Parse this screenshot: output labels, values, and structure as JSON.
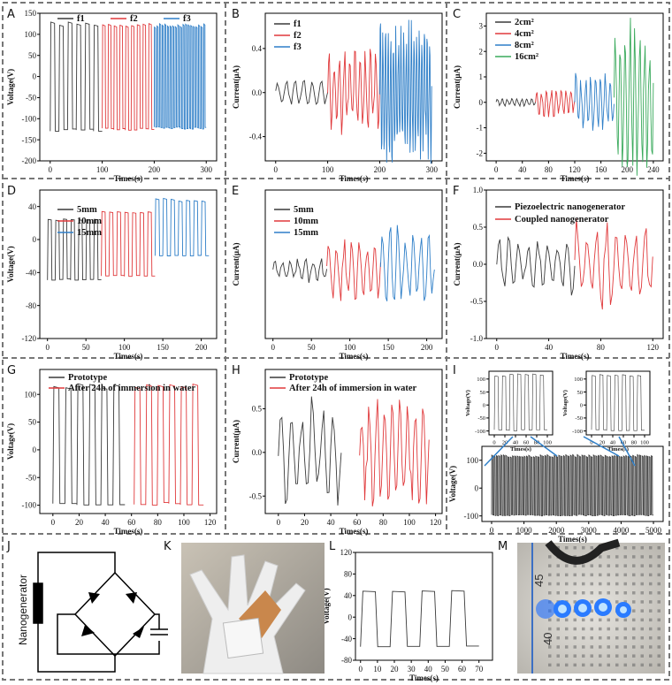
{
  "panels": {
    "A": {
      "label": "A"
    },
    "B": {
      "label": "B"
    },
    "C": {
      "label": "C"
    },
    "D": {
      "label": "D"
    },
    "E": {
      "label": "E"
    },
    "F": {
      "label": "F"
    },
    "G": {
      "label": "G"
    },
    "H": {
      "label": "H"
    },
    "I": {
      "label": "I"
    },
    "J": {
      "label": "J"
    },
    "K": {
      "label": "K"
    },
    "L": {
      "label": "L"
    },
    "M": {
      "label": "M"
    }
  },
  "circuit": {
    "source_label": "Nanogenerator"
  },
  "photo_m": {
    "ruler_labels": [
      "45",
      "40"
    ]
  },
  "colors": {
    "black": "#3a3a3a",
    "red": "#e0393b",
    "blue": "#2f7fc8",
    "green": "#3aaa5c"
  },
  "chart_data": [
    {
      "id": "A",
      "type": "line",
      "ylabel": "Voltage(V)",
      "xlabel": "Times(s)",
      "xlim": [
        -20,
        320
      ],
      "ylim": [
        -200,
        150
      ],
      "xticks": [
        "0",
        "100",
        "200",
        "300"
      ],
      "yticks": [
        "-200",
        "-150",
        "-100",
        "-50",
        "0",
        "50",
        "100",
        "150"
      ],
      "legend": [
        "f1",
        "f2",
        "f3"
      ],
      "series": [
        {
          "name": "f1",
          "x_range": [
            0,
            100
          ],
          "cycles": 6,
          "high": 130,
          "low": -130
        },
        {
          "name": "f2",
          "x_range": [
            100,
            200
          ],
          "cycles": 9,
          "high": 128,
          "low": -128
        },
        {
          "name": "f3",
          "x_range": [
            200,
            300
          ],
          "cycles": 20,
          "high": 125,
          "low": -125
        }
      ]
    },
    {
      "id": "B",
      "type": "line",
      "ylabel": "Current(μA)",
      "xlabel": "Times(s)",
      "xlim": [
        -20,
        320
      ],
      "ylim": [
        -0.62,
        0.72
      ],
      "xticks": [
        "0",
        "100",
        "200",
        "300"
      ],
      "yticks": [
        "-0.4",
        "0.0",
        "0.4"
      ],
      "legend": [
        "f1",
        "f2",
        "f3"
      ],
      "series": [
        {
          "name": "f1",
          "x_range": [
            0,
            100
          ],
          "cycles": 6,
          "amp": 0.12
        },
        {
          "name": "f2",
          "x_range": [
            100,
            200
          ],
          "cycles": 10,
          "amp": 0.38
        },
        {
          "name": "f3",
          "x_range": [
            200,
            300
          ],
          "cycles": 20,
          "amp": 0.58
        }
      ]
    },
    {
      "id": "C",
      "type": "line",
      "ylabel": "Current(μA)",
      "xlabel": "Times(s)",
      "xlim": [
        -15,
        255
      ],
      "ylim": [
        -2.3,
        3.5
      ],
      "xticks": [
        "0",
        "40",
        "80",
        "120",
        "160",
        "200",
        "240"
      ],
      "yticks": [
        "-2",
        "-1",
        "0",
        "1",
        "2",
        "3"
      ],
      "legend": [
        "2cm²",
        "4cm²",
        "8cm²",
        "16cm²"
      ],
      "series": [
        {
          "name": "2cm²",
          "x_range": [
            0,
            60
          ],
          "cycles": 8,
          "amp": 0.15
        },
        {
          "name": "4cm²",
          "x_range": [
            60,
            120
          ],
          "cycles": 8,
          "amp": 0.5
        },
        {
          "name": "8cm²",
          "x_range": [
            120,
            180
          ],
          "cycles": 8,
          "amp": 1.1
        },
        {
          "name": "16cm²",
          "x_range": [
            180,
            240
          ],
          "cycles": 8,
          "amp": 2.8
        }
      ]
    },
    {
      "id": "D",
      "type": "line",
      "ylabel": "Voltage(V)",
      "xlabel": "Times(s)",
      "xlim": [
        -10,
        220
      ],
      "ylim": [
        -120,
        60
      ],
      "xticks": [
        "0",
        "50",
        "100",
        "150",
        "200"
      ],
      "yticks": [
        "-120",
        "-80",
        "-40",
        "0",
        "40"
      ],
      "legend": [
        "5mm",
        "10mm",
        "15mm"
      ],
      "series": [
        {
          "name": "5mm",
          "x_range": [
            0,
            70
          ],
          "cycles": 7,
          "high": 25,
          "low": -50
        },
        {
          "name": "10mm",
          "x_range": [
            70,
            140
          ],
          "cycles": 7,
          "high": 35,
          "low": -45
        },
        {
          "name": "15mm",
          "x_range": [
            140,
            210
          ],
          "cycles": 7,
          "high": 50,
          "low": -20
        }
      ]
    },
    {
      "id": "E",
      "type": "line",
      "ylabel": "Current(μA)",
      "xlabel": "Times(s)",
      "xlim": [
        -10,
        220
      ],
      "ylim": [
        -0.62,
        0.72
      ],
      "xticks": [
        "0",
        "50",
        "100",
        "150",
        "200"
      ],
      "yticks": [],
      "legend": [
        "5mm",
        "10mm",
        "15mm"
      ],
      "series": [
        {
          "name": "5mm",
          "x_range": [
            0,
            70
          ],
          "cycles": 7,
          "amp": 0.1
        },
        {
          "name": "10mm",
          "x_range": [
            70,
            140
          ],
          "cycles": 7,
          "amp": 0.25
        },
        {
          "name": "15mm",
          "x_range": [
            140,
            210
          ],
          "cycles": 7,
          "amp": 0.35
        }
      ]
    },
    {
      "id": "F",
      "type": "line",
      "ylabel": "Current(μA)",
      "xlabel": "Times(s)",
      "xlim": [
        -8,
        128
      ],
      "ylim": [
        -1.0,
        1.0
      ],
      "xticks": [
        "0",
        "40",
        "80",
        "120"
      ],
      "yticks": [
        "-1.0",
        "-0.5",
        "0.0",
        "0.5",
        "1.0"
      ],
      "legend": [
        "Piezoelectric nanogenerator",
        "Coupled nanogenerator"
      ],
      "series": [
        {
          "name": "Piezoelectric nanogenerator",
          "x_range": [
            0,
            60
          ],
          "cycles": 8,
          "amp": 0.35
        },
        {
          "name": "Coupled nanogenerator",
          "x_range": [
            60,
            120
          ],
          "cycles": 8,
          "amp": 0.55
        }
      ]
    },
    {
      "id": "G",
      "type": "line",
      "ylabel": "Voltage(V)",
      "xlabel": "Times(s)",
      "xlim": [
        -10,
        125
      ],
      "ylim": [
        -115,
        145
      ],
      "xticks": [
        "0",
        "20",
        "40",
        "60",
        "80",
        "100",
        "120"
      ],
      "yticks": [
        "-100",
        "-50",
        "0",
        "50",
        "100"
      ],
      "legend": [
        "Prototype",
        "After 24h of immersion in water"
      ],
      "series": [
        {
          "name": "Prototype",
          "x_range": [
            0,
            55
          ],
          "cycles": 6,
          "high": 120,
          "low": -100
        },
        {
          "name": "After 24h of immersion in water",
          "x_range": [
            62,
            115
          ],
          "cycles": 6,
          "high": 120,
          "low": -100
        }
      ]
    },
    {
      "id": "H",
      "type": "line",
      "ylabel": "Current(μA)",
      "xlabel": "Times(s)",
      "xlim": [
        -10,
        125
      ],
      "ylim": [
        -0.7,
        0.95
      ],
      "xticks": [
        "0",
        "20",
        "40",
        "60",
        "80",
        "100",
        "120"
      ],
      "yticks": [
        "-0.5",
        "0.0",
        "0.5"
      ],
      "legend": [
        "Prototype",
        "After 24h of immersion in water"
      ],
      "series": [
        {
          "name": "Prototype",
          "x_range": [
            0,
            48
          ],
          "cycles": 6,
          "amp": 0.55
        },
        {
          "name": "After 24h of immersion in water",
          "x_range": [
            62,
            115
          ],
          "cycles": 9,
          "amp": 0.6
        }
      ]
    },
    {
      "id": "I_main",
      "type": "line",
      "ylabel": "Voltage(V)",
      "xlabel": "Times(s)",
      "xlim": [
        -300,
        5300
      ],
      "ylim": [
        -120,
        150
      ],
      "xticks": [
        "0",
        "1000",
        "2000",
        "3000",
        "4000",
        "5000"
      ],
      "yticks": [
        "-100",
        "0",
        "100"
      ],
      "series": [
        {
          "name": "",
          "x_range": [
            0,
            5000
          ],
          "cycles": 70,
          "high": 120,
          "low": -100
        }
      ]
    },
    {
      "id": "I_inset1",
      "type": "line",
      "ylabel": "Voltage(V)",
      "xlabel": "Times(s)",
      "xlim": [
        -10,
        110
      ],
      "ylim": [
        -115,
        130
      ],
      "xticks": [
        "0",
        "20",
        "40",
        "60",
        "80",
        "100"
      ],
      "yticks": [
        "-100",
        "-50",
        "0",
        "50",
        "100"
      ],
      "series": [
        {
          "name": "",
          "x_range": [
            0,
            100
          ],
          "cycles": 7,
          "high": 120,
          "low": -100
        }
      ]
    },
    {
      "id": "I_inset2",
      "type": "line",
      "ylabel": "Voltage(V)",
      "xlabel": "Times(s)",
      "xlim": [
        -10,
        110
      ],
      "ylim": [
        -115,
        130
      ],
      "xticks": [
        "0",
        "20",
        "40",
        "60",
        "80",
        "100"
      ],
      "yticks": [
        "-100",
        "-50",
        "0",
        "50",
        "100"
      ],
      "series": [
        {
          "name": "",
          "x_range": [
            0,
            100
          ],
          "cycles": 7,
          "high": 120,
          "low": -100
        }
      ]
    },
    {
      "id": "L",
      "type": "line",
      "ylabel": "Voltage(V)",
      "xlabel": "Times(s)",
      "xlim": [
        -3,
        78
      ],
      "ylim": [
        -80,
        120
      ],
      "xticks": [
        "0",
        "10",
        "20",
        "30",
        "40",
        "50",
        "60",
        "70"
      ],
      "yticks": [
        "-80",
        "-40",
        "0",
        "40",
        "80",
        "120"
      ],
      "series": [
        {
          "name": "",
          "x_range": [
            0,
            70
          ],
          "cycles": 4,
          "high": 50,
          "low": -55
        }
      ]
    }
  ]
}
